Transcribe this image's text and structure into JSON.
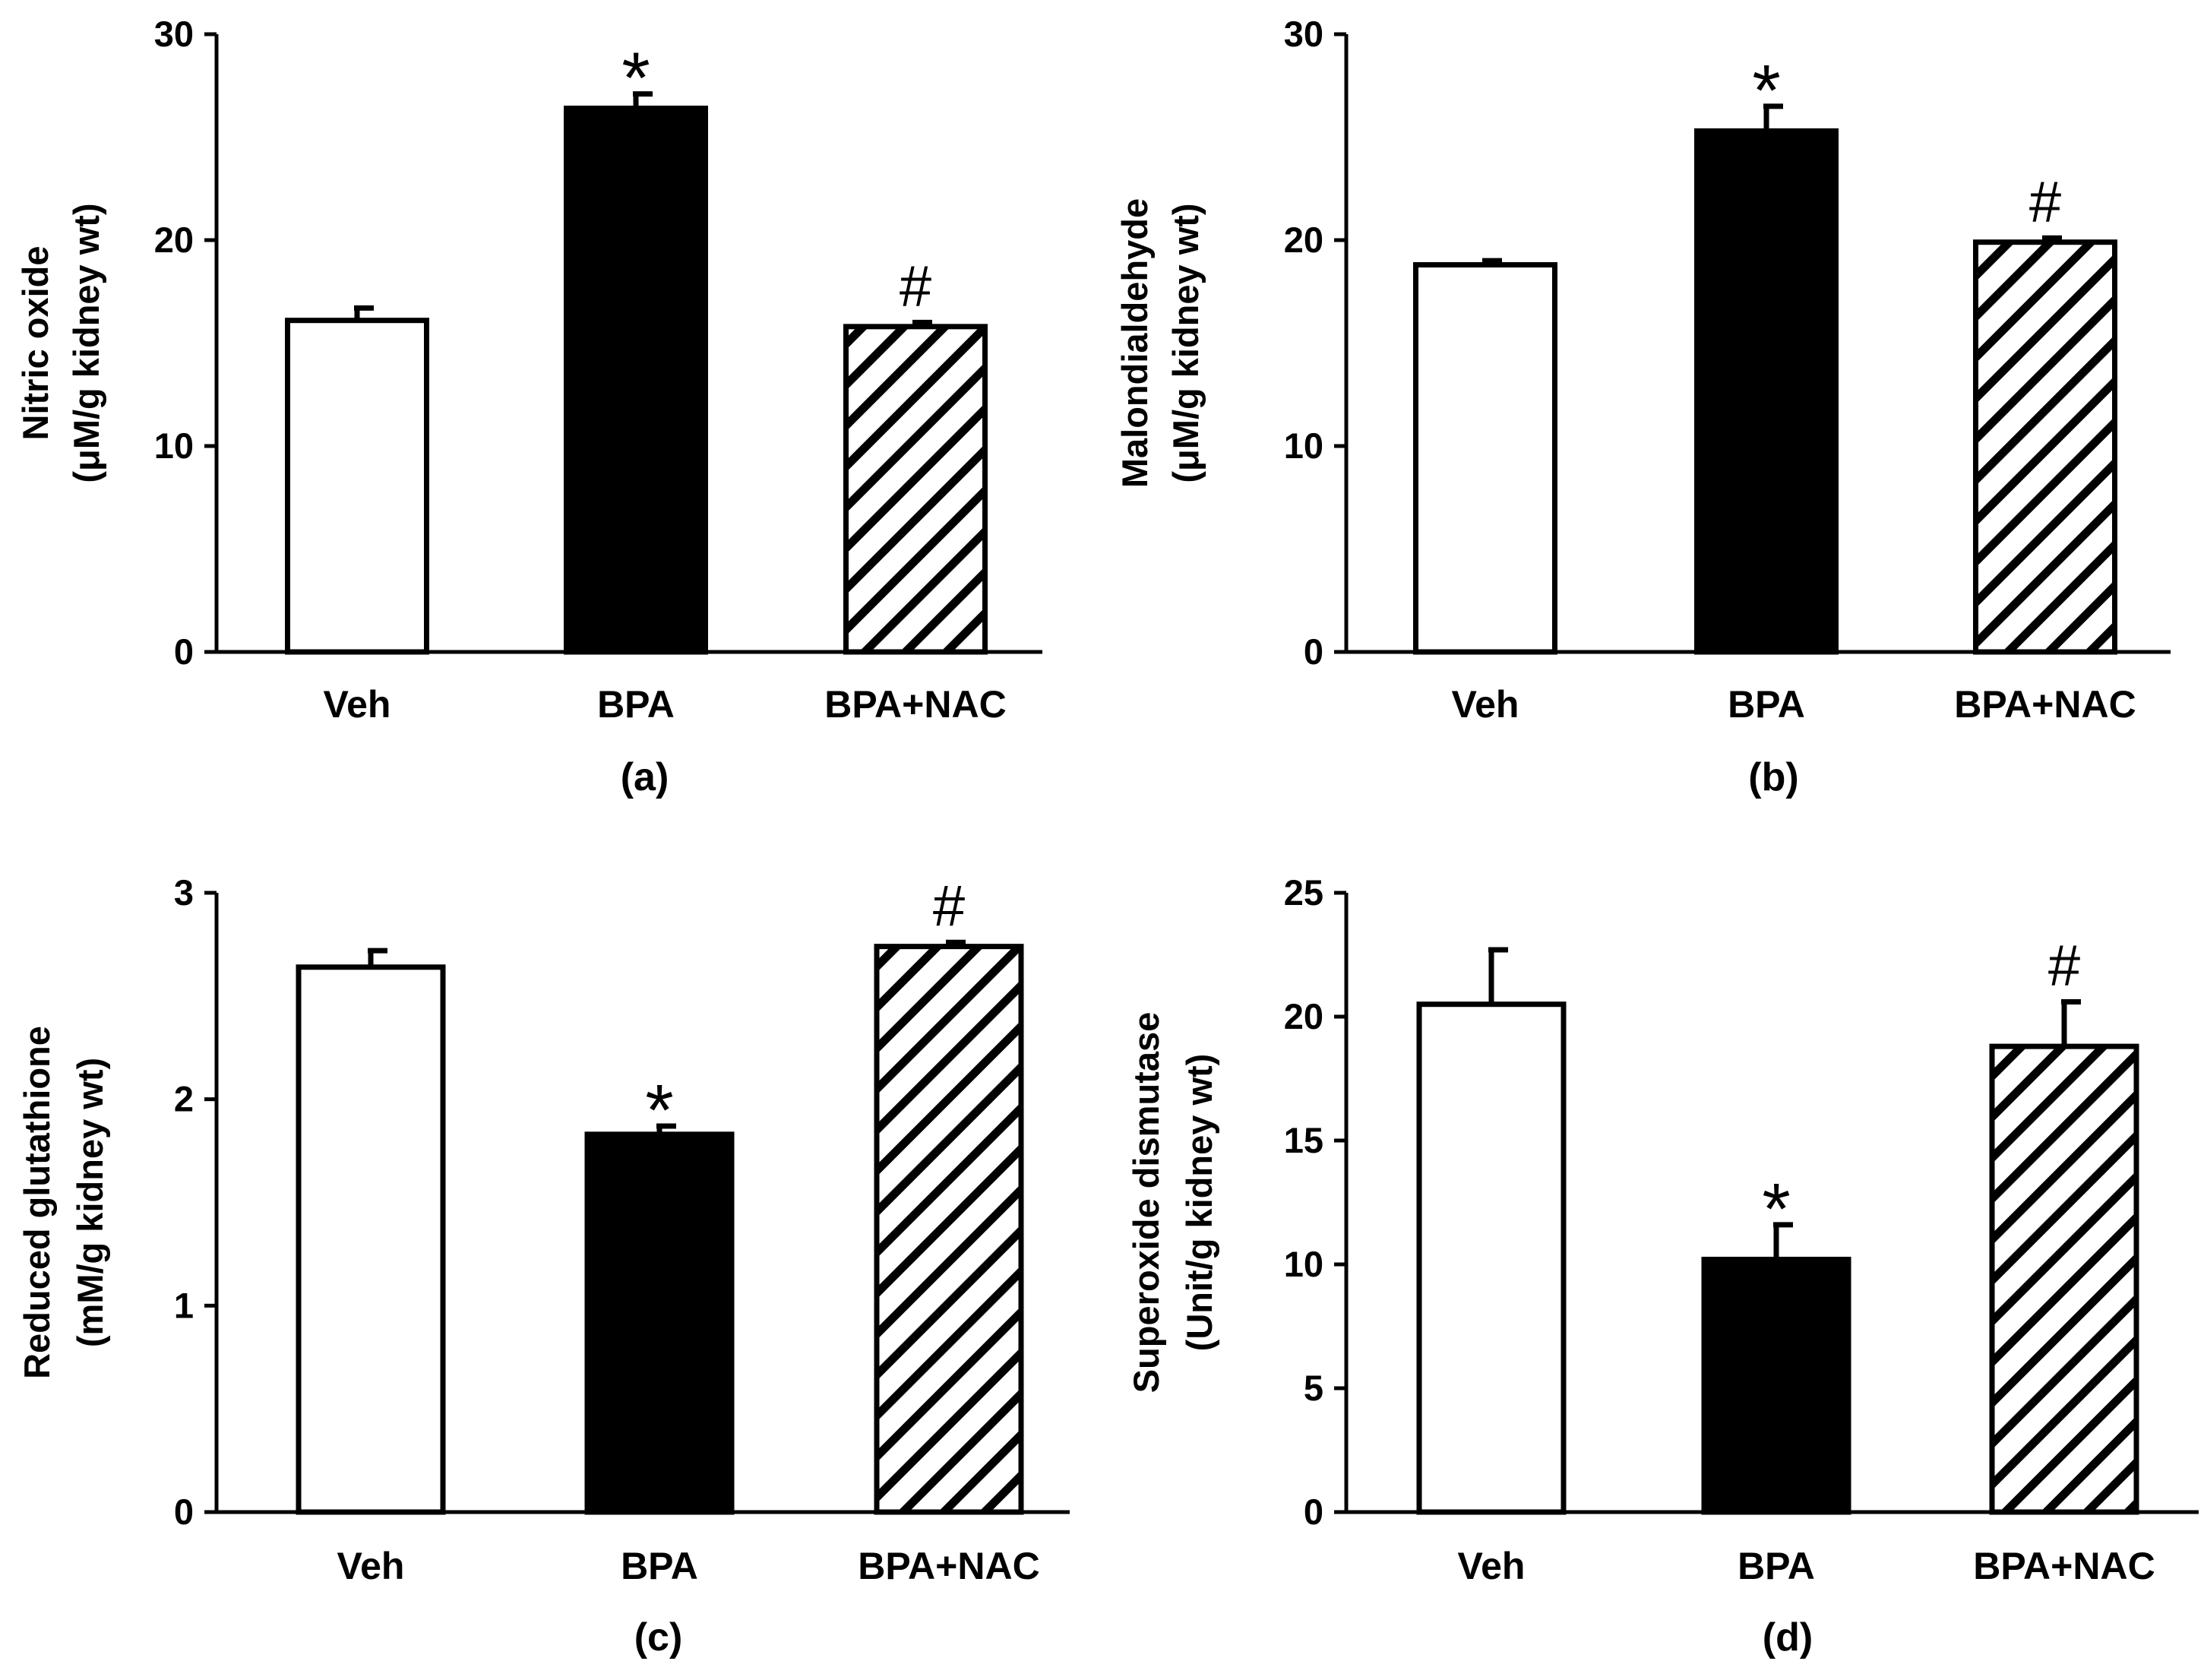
{
  "figure": {
    "background": "#ffffff",
    "ink": "#000000"
  },
  "chart_data": [
    {
      "type": "bar",
      "panel_label": "(a)",
      "title": "",
      "xlabel": "",
      "ylabel_lines": [
        "Nitric oxide",
        "(μM/g kidney wt)"
      ],
      "categories": [
        "Veh",
        "BPA",
        "BPA+NAC"
      ],
      "values": [
        16.1,
        26.4,
        15.8
      ],
      "errors": [
        0.6,
        0.7,
        0.2
      ],
      "markers": [
        "",
        "*",
        "#"
      ],
      "fills": [
        "white",
        "black",
        "hatch"
      ],
      "ylim": [
        0,
        30
      ],
      "yticks": [
        0,
        10,
        20,
        30
      ],
      "grid": false
    },
    {
      "type": "bar",
      "panel_label": "(b)",
      "title": "",
      "xlabel": "",
      "ylabel_lines": [
        "Malondialdehyde",
        "(μM/g kidney wt)"
      ],
      "categories": [
        "Veh",
        "BPA",
        "BPA+NAC"
      ],
      "values": [
        18.8,
        25.3,
        19.9
      ],
      "errors": [
        0.2,
        1.2,
        0.2
      ],
      "markers": [
        "",
        "*",
        "#"
      ],
      "fills": [
        "white",
        "black",
        "hatch"
      ],
      "ylim": [
        0,
        30
      ],
      "yticks": [
        0,
        10,
        20,
        30
      ],
      "grid": false
    },
    {
      "type": "bar",
      "panel_label": "(c)",
      "title": "",
      "xlabel": "",
      "ylabel_lines": [
        "Reduced glutathione",
        "(mM/g kidney wt)"
      ],
      "categories": [
        "Veh",
        "BPA",
        "BPA+NAC"
      ],
      "values": [
        2.64,
        1.83,
        2.74
      ],
      "errors": [
        0.08,
        0.04,
        0.02
      ],
      "markers": [
        "",
        "*",
        "#"
      ],
      "fills": [
        "white",
        "black",
        "hatch"
      ],
      "ylim": [
        0,
        3
      ],
      "yticks": [
        0,
        1,
        2,
        3
      ],
      "grid": false
    },
    {
      "type": "bar",
      "panel_label": "(d)",
      "title": "",
      "xlabel": "",
      "ylabel_lines": [
        "Superoxide dismutase",
        "(Unit/g kidney wt)"
      ],
      "categories": [
        "Veh",
        "BPA",
        "BPA+NAC"
      ],
      "values": [
        20.5,
        10.2,
        18.8
      ],
      "errors": [
        2.2,
        1.4,
        1.8
      ],
      "markers": [
        "",
        "*",
        "#"
      ],
      "fills": [
        "white",
        "black",
        "hatch"
      ],
      "ylim": [
        0,
        25
      ],
      "yticks": [
        0,
        5,
        10,
        15,
        20,
        25
      ],
      "grid": false
    }
  ]
}
